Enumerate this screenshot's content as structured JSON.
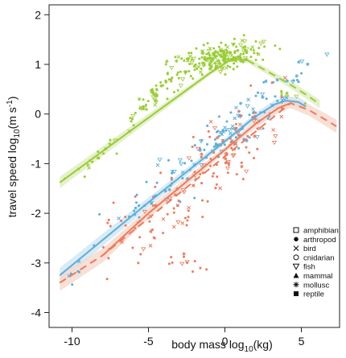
{
  "chart_data": {
    "type": "scatter",
    "title": "",
    "xlabel_parts": [
      "body mass  log",
      "10",
      "(kg)"
    ],
    "ylabel_parts": [
      "travel speed  log",
      "10",
      "(m s",
      "-1",
      ")"
    ],
    "xlim": [
      -11.5,
      7.5
    ],
    "ylim": [
      -4.3,
      2.2
    ],
    "x_ticks": [
      -10,
      -5,
      0,
      5
    ],
    "y_ticks": [
      -4,
      -3,
      -2,
      -1,
      0,
      1,
      2
    ],
    "grid": false,
    "legend_position": "bottom-right",
    "legend": [
      {
        "label": "amphibian",
        "marker": "square-open"
      },
      {
        "label": "arthropod",
        "marker": "circle-filled"
      },
      {
        "label": "bird",
        "marker": "cross"
      },
      {
        "label": "cnidarian",
        "marker": "circle-open"
      },
      {
        "label": "fish",
        "marker": "triangle-down-open"
      },
      {
        "label": "mammal",
        "marker": "triangle-up-filled"
      },
      {
        "label": "mollusc",
        "marker": "asterisk"
      },
      {
        "label": "reptile",
        "marker": "square-filled"
      }
    ],
    "colors": {
      "flying": "#99cc33",
      "swimming": "#5aaedb",
      "running": "#ef7a5a",
      "band_flying": "#dfeec0",
      "band_swimming": "#cfe6f2",
      "band_running": "#f5d8cc"
    },
    "series": [
      {
        "color_key": "flying",
        "fit": {
          "solid": [
            [
              -10.8,
              -1.38
            ],
            [
              -6.0,
              -0.3
            ],
            [
              -1.0,
              0.82
            ],
            [
              0.5,
              1.12
            ],
            [
              1.5,
              1.08
            ]
          ],
          "dashed": [
            [
              1.5,
              1.08
            ],
            [
              3.0,
              0.82
            ],
            [
              4.5,
              0.55
            ],
            [
              5.5,
              0.35
            ],
            [
              6.2,
              0.2
            ]
          ]
        },
        "band_halfwidth": 0.07
      },
      {
        "color_key": "swimming",
        "fit": {
          "solid": [
            [
              -10.8,
              -3.25
            ],
            [
              -5.0,
              -1.78
            ],
            [
              0.0,
              -0.55
            ],
            [
              2.0,
              -0.05
            ],
            [
              3.3,
              0.2
            ],
            [
              4.0,
              0.27
            ],
            [
              4.8,
              0.24
            ],
            [
              5.3,
              0.15
            ]
          ],
          "dashed": []
        },
        "band_halfwidth": 0.09
      },
      {
        "color_key": "running",
        "fit": {
          "solid": [
            [
              -8.0,
              -2.85
            ],
            [
              -5.0,
              -2.0
            ],
            [
              0.0,
              -0.72
            ],
            [
              2.0,
              -0.2
            ],
            [
              3.5,
              0.12
            ],
            [
              4.3,
              0.22
            ]
          ],
          "dashed": [
            [
              -10.8,
              -3.4
            ],
            [
              -8.0,
              -2.85
            ],
            [
              4.3,
              0.22
            ],
            [
              5.5,
              0.08
            ],
            [
              6.5,
              -0.1
            ],
            [
              7.3,
              -0.25
            ]
          ]
        },
        "band_halfwidth": 0.1
      }
    ],
    "point_clusters": [
      {
        "color_key": "flying",
        "n": 55,
        "cx": -4.5,
        "cy": 0.4,
        "sx": 0.9,
        "slope": 0.22,
        "sy": 0.12,
        "seed": 11
      },
      {
        "color_key": "flying",
        "n": 200,
        "cx": -0.4,
        "cy": 1.12,
        "sx": 1.3,
        "slope": 0.05,
        "sy": 0.14,
        "seed": 12
      },
      {
        "color_key": "flying",
        "n": 18,
        "cx": -8.2,
        "cy": -0.85,
        "sx": 1.4,
        "slope": 0.22,
        "sy": 0.1,
        "seed": 13
      },
      {
        "color_key": "flying",
        "n": 8,
        "cx": 4.5,
        "cy": 0.35,
        "sx": 0.5,
        "slope": -0.1,
        "sy": 0.06,
        "seed": 14
      },
      {
        "color_key": "swimming",
        "n": 110,
        "cx": 1.0,
        "cy": -0.2,
        "sx": 2.2,
        "slope": 0.22,
        "sy": 0.25,
        "seed": 21
      },
      {
        "color_key": "swimming",
        "n": 30,
        "cx": -5.0,
        "cy": -1.8,
        "sx": 2.4,
        "slope": 0.22,
        "sy": 0.3,
        "seed": 22
      },
      {
        "color_key": "swimming",
        "n": 6,
        "cx": -9.6,
        "cy": -3.2,
        "sx": 0.35,
        "slope": 0.2,
        "sy": 0.15,
        "seed": 23
      },
      {
        "color_key": "running",
        "n": 120,
        "cx": -2.5,
        "cy": -1.5,
        "sx": 3.2,
        "slope": 0.24,
        "sy": 0.45,
        "seed": 31
      },
      {
        "color_key": "running",
        "n": 30,
        "cx": 1.2,
        "cy": -0.5,
        "sx": 1.3,
        "slope": 0.2,
        "sy": 0.3,
        "seed": 32
      },
      {
        "color_key": "running",
        "n": 12,
        "cx": -2.5,
        "cy": -3.0,
        "sx": 0.8,
        "slope": 0.0,
        "sy": 0.12,
        "seed": 33
      }
    ]
  }
}
